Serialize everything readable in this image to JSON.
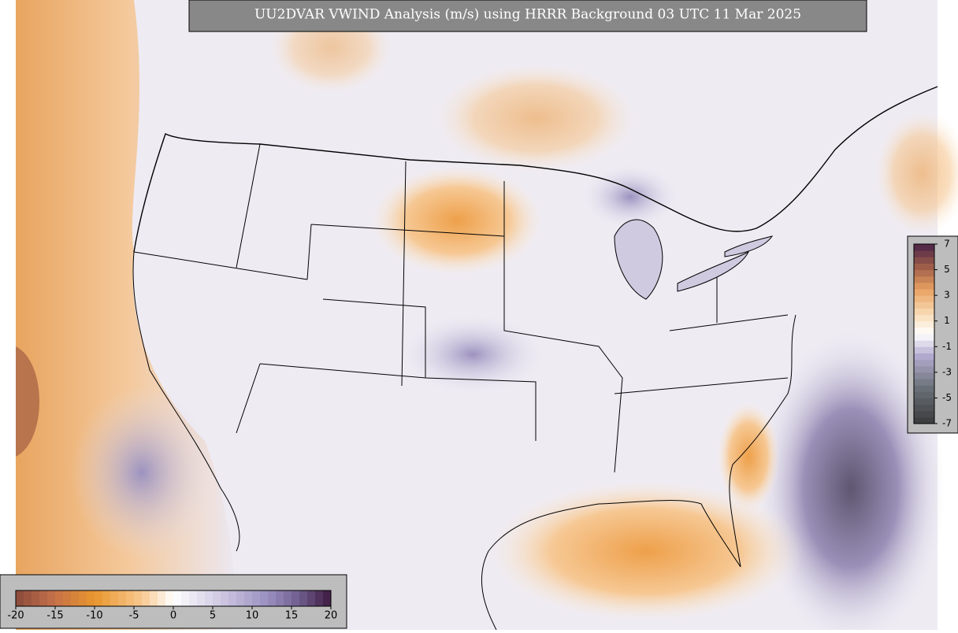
{
  "title": "UU2DVAR VWIND Analysis (m/s) using HRRR Background 03 UTC 11 Mar 2025",
  "colorbar_main": {
    "lim": [
      -20,
      20
    ],
    "ticks": [
      -20,
      -15,
      -10,
      -5,
      0,
      5,
      10,
      15,
      20
    ]
  },
  "colorbar_inset": {
    "lim": [
      -7,
      7
    ],
    "ticks": [
      7,
      5,
      3,
      1,
      -1,
      -3,
      -5,
      -7
    ]
  }
}
